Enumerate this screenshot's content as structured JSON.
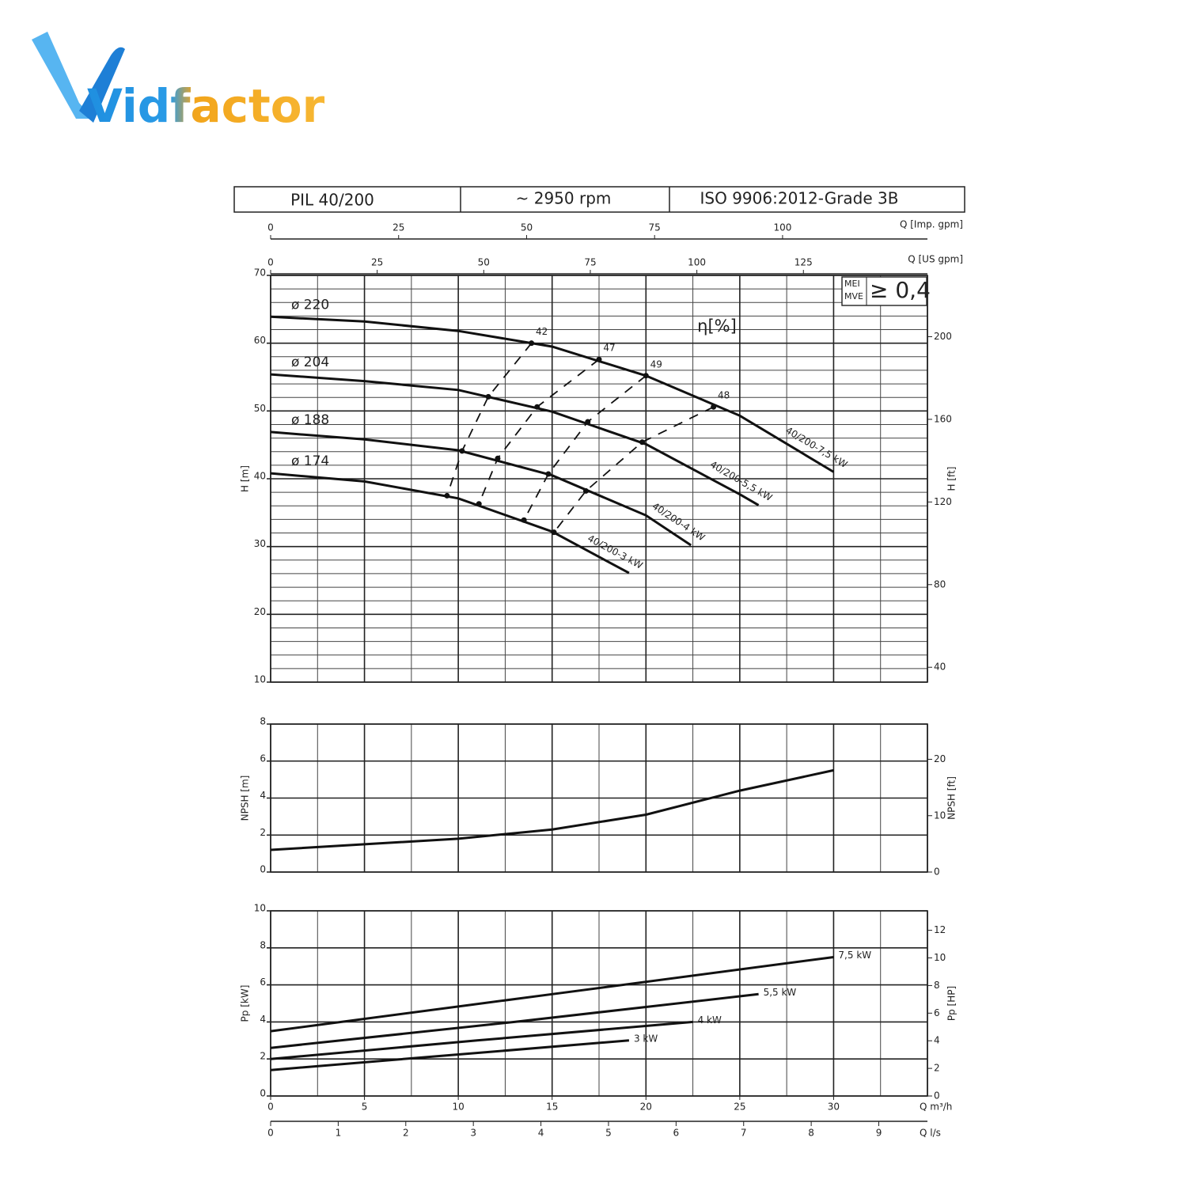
{
  "logo": "Vidfactor",
  "header": [
    "PIL 40/200",
    "~ 2950 rpm",
    "ISO 9906:2012-Grade 3B"
  ],
  "chart_data": [
    {
      "type": "line",
      "ylabel": "H [m]",
      "y2label": "H [ft]",
      "xlim": [
        0,
        35
      ],
      "xgrid_step": 2.5,
      "ylim": [
        10,
        70
      ],
      "yticks": [
        10,
        20,
        30,
        40,
        50,
        60,
        70
      ],
      "ygrid_step": 2,
      "y2lim": [
        32.81,
        229.66
      ],
      "y2ticks": [
        40,
        80,
        120,
        160,
        200
      ],
      "top_axes": [
        {
          "label": "Q [Imp. gpm]",
          "lim": [
            0,
            128.3
          ],
          "ticks": [
            0,
            25,
            50,
            75,
            100
          ]
        },
        {
          "label": "Q [US gpm]",
          "lim": [
            0,
            154.1
          ],
          "ticks": [
            0,
            25,
            50,
            75,
            100,
            125
          ]
        }
      ],
      "efficiency_label": "η[%]",
      "mei": {
        "labels": [
          "MEI",
          "MVE"
        ],
        "value": "≥ 0,4"
      },
      "color": "#111111",
      "series": [
        {
          "name": "ø 220",
          "label": "40/200-7,5 kW",
          "x": [
            0,
            5,
            10,
            15,
            20,
            25,
            30
          ],
          "values": [
            63.9,
            63.2,
            61.8,
            59.5,
            55.2,
            49.3,
            41.0
          ]
        },
        {
          "name": "ø 204",
          "label": "40/200-5,5 kW",
          "x": [
            0,
            5,
            10,
            15,
            20,
            25,
            26
          ],
          "values": [
            55.4,
            54.4,
            53.1,
            49.9,
            45.1,
            37.7,
            36.1
          ]
        },
        {
          "name": "ø 188",
          "label": "40/200-4 kW",
          "x": [
            0,
            5,
            10,
            15,
            20,
            22.4
          ],
          "values": [
            46.9,
            45.8,
            44.2,
            40.5,
            34.6,
            30.2
          ]
        },
        {
          "name": "ø 174",
          "label": "40/200-3 kW",
          "x": [
            0,
            5,
            10,
            15,
            19.1
          ],
          "values": [
            40.8,
            39.6,
            37.1,
            32.2,
            26.1
          ]
        }
      ],
      "efficiency": [
        {
          "name": "42",
          "x": [
            13.9,
            11.6,
            10.2,
            9.4
          ],
          "values": [
            60.0,
            52.1,
            44.1,
            37.5
          ]
        },
        {
          "name": "47",
          "x": [
            17.5,
            14.2,
            12.1,
            11.1
          ],
          "values": [
            57.6,
            50.6,
            43.0,
            36.3
          ]
        },
        {
          "name": "49",
          "x": [
            20.0,
            16.9,
            14.8,
            13.5
          ],
          "values": [
            55.2,
            48.4,
            40.7,
            33.9
          ]
        },
        {
          "name": "48",
          "x": [
            23.6,
            19.8,
            16.8,
            15.1
          ],
          "values": [
            50.6,
            45.4,
            38.2,
            32.1
          ]
        }
      ]
    },
    {
      "type": "line",
      "ylabel": "NPSH [m]",
      "y2label": "NPSH [ft]",
      "xlim": [
        0,
        35
      ],
      "xgrid_step": 2.5,
      "ylim": [
        0,
        8
      ],
      "yticks": [
        0,
        2,
        4,
        6,
        8
      ],
      "y2lim": [
        0,
        26.25
      ],
      "y2ticks": [
        0,
        10,
        20
      ],
      "color": "#111111",
      "series": [
        {
          "x": [
            0,
            5,
            10,
            15,
            20,
            25,
            30
          ],
          "values": [
            1.2,
            1.5,
            1.8,
            2.3,
            3.1,
            4.4,
            5.5
          ]
        }
      ]
    },
    {
      "type": "line",
      "ylabel": "Pp [kW]",
      "y2label": "Pp [HP]",
      "xlim": [
        0,
        35
      ],
      "xgrid_step": 2.5,
      "xticks": [
        0,
        5,
        10,
        15,
        20,
        25,
        30
      ],
      "xlabel": "Q m³/h",
      "ylim": [
        0,
        10
      ],
      "yticks": [
        0,
        2,
        4,
        6,
        8,
        10
      ],
      "y2lim": [
        0,
        13.41
      ],
      "y2ticks": [
        0,
        2,
        4,
        6,
        8,
        10,
        12
      ],
      "color": "#111111",
      "bottom_axes": [
        {
          "label": "Q l/s",
          "lim": [
            0,
            9.72
          ],
          "ticks": [
            0,
            1,
            2,
            3,
            4,
            5,
            6,
            7,
            8,
            9
          ]
        }
      ],
      "series": [
        {
          "name": "7,5 kW",
          "x": [
            0,
            15,
            30
          ],
          "values": [
            3.5,
            5.5,
            7.5
          ]
        },
        {
          "name": "5,5 kW",
          "x": [
            0,
            13,
            26
          ],
          "values": [
            2.6,
            4.0,
            5.5
          ]
        },
        {
          "name": "4 kW",
          "x": [
            0,
            11,
            22.5
          ],
          "values": [
            2.0,
            3.0,
            4.0
          ]
        },
        {
          "name": "3 kW",
          "x": [
            0,
            9.5,
            19.1
          ],
          "values": [
            1.4,
            2.2,
            3.0
          ]
        }
      ]
    }
  ]
}
